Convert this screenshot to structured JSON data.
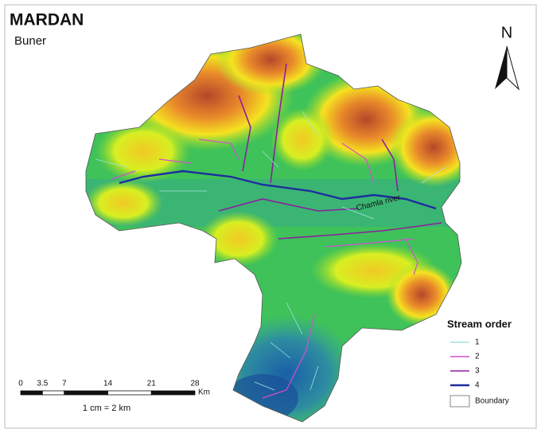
{
  "header": {
    "title": "MARDAN",
    "subtitle": "Buner"
  },
  "north_arrow": {
    "label": "N"
  },
  "map": {
    "river_label": "Chamla river"
  },
  "legend": {
    "title": "Stream order",
    "items": [
      {
        "label": "1",
        "color": "#9fe3da"
      },
      {
        "label": "2",
        "color": "#d24fd0"
      },
      {
        "label": "3",
        "color": "#8b1f9e"
      },
      {
        "label": "4",
        "color": "#1d2e9e"
      }
    ],
    "boundary": "Boundary"
  },
  "scale_bar": {
    "ticks": [
      0,
      3.5,
      7,
      14,
      21,
      28
    ],
    "unit": "Km",
    "note": "1 cm = 2 km"
  }
}
